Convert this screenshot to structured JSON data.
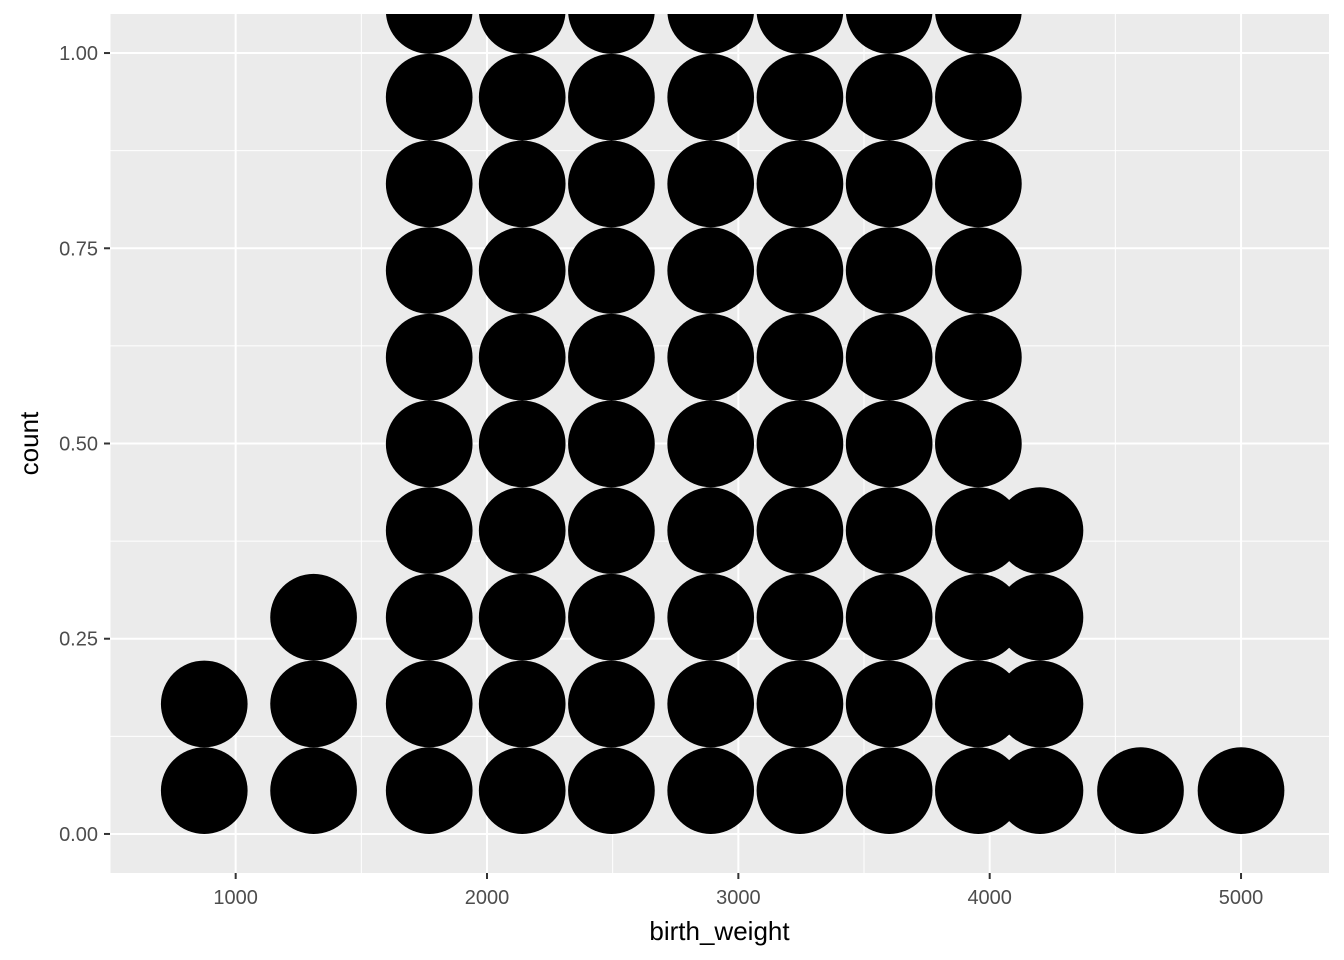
{
  "chart_data": {
    "type": "dotplot",
    "xlabel": "birth_weight",
    "ylabel": "count",
    "xlim": [
      500,
      5350
    ],
    "ylim": [
      -0.05,
      1.05
    ],
    "x_ticks": [
      1000,
      2000,
      3000,
      4000,
      5000
    ],
    "x_tick_labels": [
      "1000",
      "2000",
      "3000",
      "4000",
      "5000"
    ],
    "y_ticks": [
      0,
      0.25,
      0.5,
      0.75,
      1
    ],
    "y_tick_labels": [
      "0.00",
      "0.25",
      "0.50",
      "0.75",
      "1.00"
    ],
    "dot_diameter_y": 0.111,
    "stacks": [
      {
        "x": 875,
        "count": 2
      },
      {
        "x": 1310,
        "count": 3
      },
      {
        "x": 1770,
        "count": 10
      },
      {
        "x": 2140,
        "count": 10
      },
      {
        "x": 2495,
        "count": 10
      },
      {
        "x": 2890,
        "count": 10
      },
      {
        "x": 3245,
        "count": 10
      },
      {
        "x": 3600,
        "count": 10
      },
      {
        "x": 3955,
        "count": 10
      },
      {
        "x": 4200,
        "count": 4
      },
      {
        "x": 4600,
        "count": 1
      },
      {
        "x": 5000,
        "count": 1
      }
    ],
    "grid": true,
    "legend": "none",
    "colors": {
      "panel": "#ebebeb",
      "grid": "#ffffff",
      "dot": "#000000",
      "tick_text": "#4d4d4d",
      "axis_title": "#000000"
    }
  }
}
